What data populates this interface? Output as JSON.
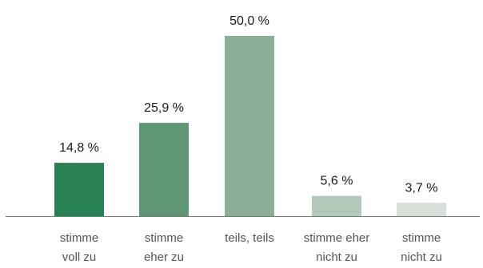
{
  "chart_data": {
    "type": "bar",
    "categories": [
      [
        "stimme",
        "voll zu"
      ],
      [
        "stimme",
        "eher zu"
      ],
      [
        "teils, teils"
      ],
      [
        "stimme eher",
        "nicht zu"
      ],
      [
        "stimme",
        "nicht zu"
      ]
    ],
    "values": [
      14.8,
      25.9,
      50.0,
      5.6,
      3.7
    ],
    "value_labels": [
      "14,8 %",
      "25,9 %",
      "50,0 %",
      "5,6 %",
      "3,7 %"
    ],
    "colors": [
      "#2a8055",
      "#5e9676",
      "#8aae96",
      "#b3c9b9",
      "#d6e0d8"
    ],
    "title": "",
    "xlabel": "",
    "ylabel": "",
    "ylim": [
      0,
      50
    ],
    "grid": false,
    "legend": "none"
  }
}
